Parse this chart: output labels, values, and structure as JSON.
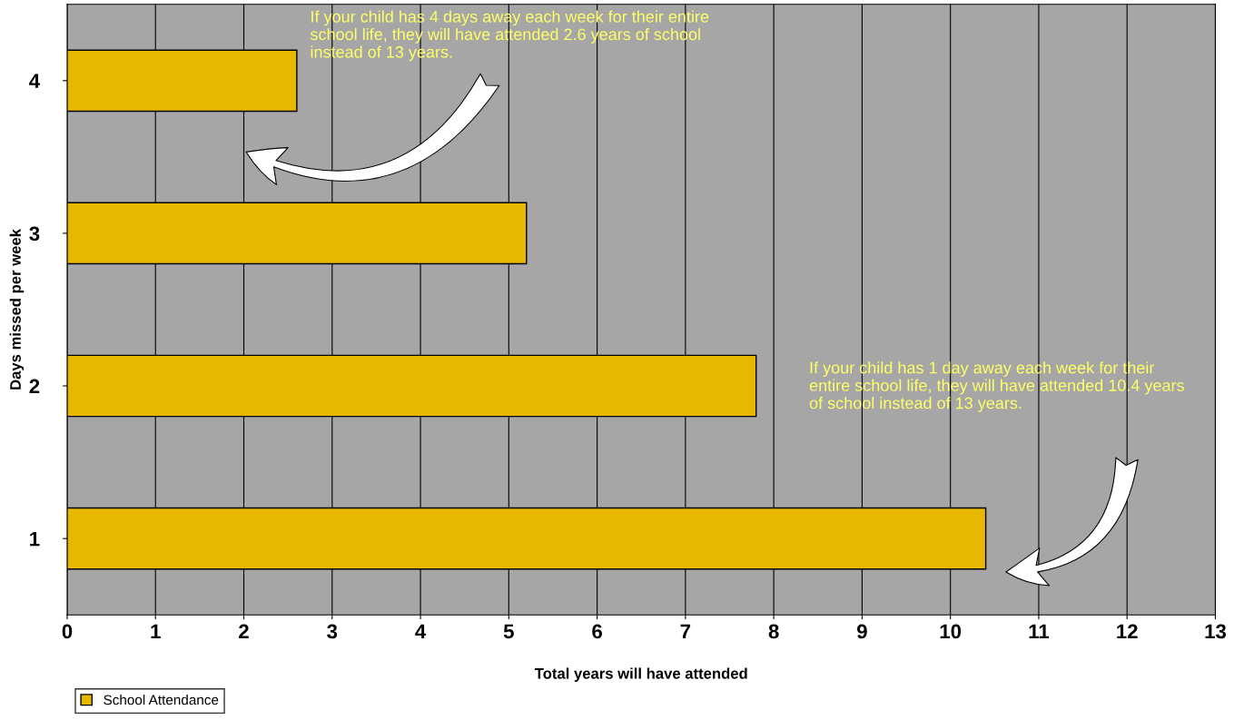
{
  "chart_data": {
    "type": "bar",
    "orientation": "horizontal",
    "categories": [
      "4",
      "3",
      "2",
      "1"
    ],
    "series": [
      {
        "name": "School Attendance",
        "color": "#e8b800",
        "values": [
          2.6,
          5.2,
          7.8,
          10.4
        ]
      }
    ],
    "xlabel": "Total years will have attended",
    "ylabel": "Days missed per week",
    "xlim": [
      0,
      13
    ],
    "xticks": [
      0,
      1,
      2,
      3,
      4,
      5,
      6,
      7,
      8,
      9,
      10,
      11,
      12,
      13
    ],
    "grid": "x",
    "legend": "bottom left",
    "annotations": [
      "If your child has 4 days away each week for their entire school life, they will have attended 2.6 years of school instead of 13 years.",
      "If your child has 1 day away each week for their entire school life, they will have attended 10.4 years of school instead of 13 years."
    ]
  }
}
